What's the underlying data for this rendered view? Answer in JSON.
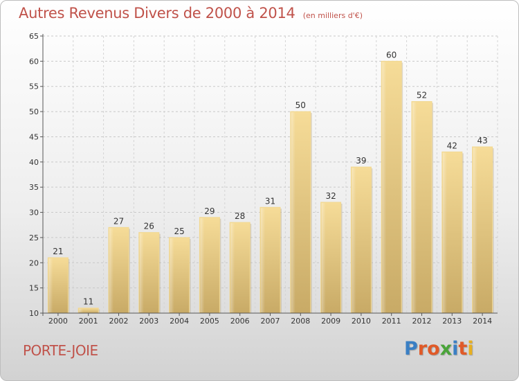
{
  "chart_data": {
    "type": "bar",
    "title": "Autres Revenus Divers de 2000 à 2014",
    "subtitle": "(en milliers d'€)",
    "categories": [
      "2000",
      "2001",
      "2002",
      "2003",
      "2004",
      "2005",
      "2006",
      "2007",
      "2008",
      "2009",
      "2010",
      "2011",
      "2012",
      "2013",
      "2014"
    ],
    "values": [
      21,
      11,
      27,
      26,
      25,
      29,
      28,
      31,
      50,
      32,
      39,
      60,
      52,
      42,
      43
    ],
    "ylim": [
      10,
      65
    ],
    "yticks": [
      10,
      15,
      20,
      25,
      30,
      35,
      40,
      45,
      50,
      55,
      60,
      65
    ],
    "grid": true,
    "bar_color": "#e8c878"
  },
  "footer": {
    "place": "PORTE-JOIE",
    "brand": "Proxiti"
  },
  "colors": {
    "title": "#c0524a",
    "logo_letters": [
      "#3a7fc4",
      "#e05a28",
      "#e05a28",
      "#4aa43a",
      "#3a7fc4",
      "#e05a28",
      "#e8b020"
    ]
  }
}
